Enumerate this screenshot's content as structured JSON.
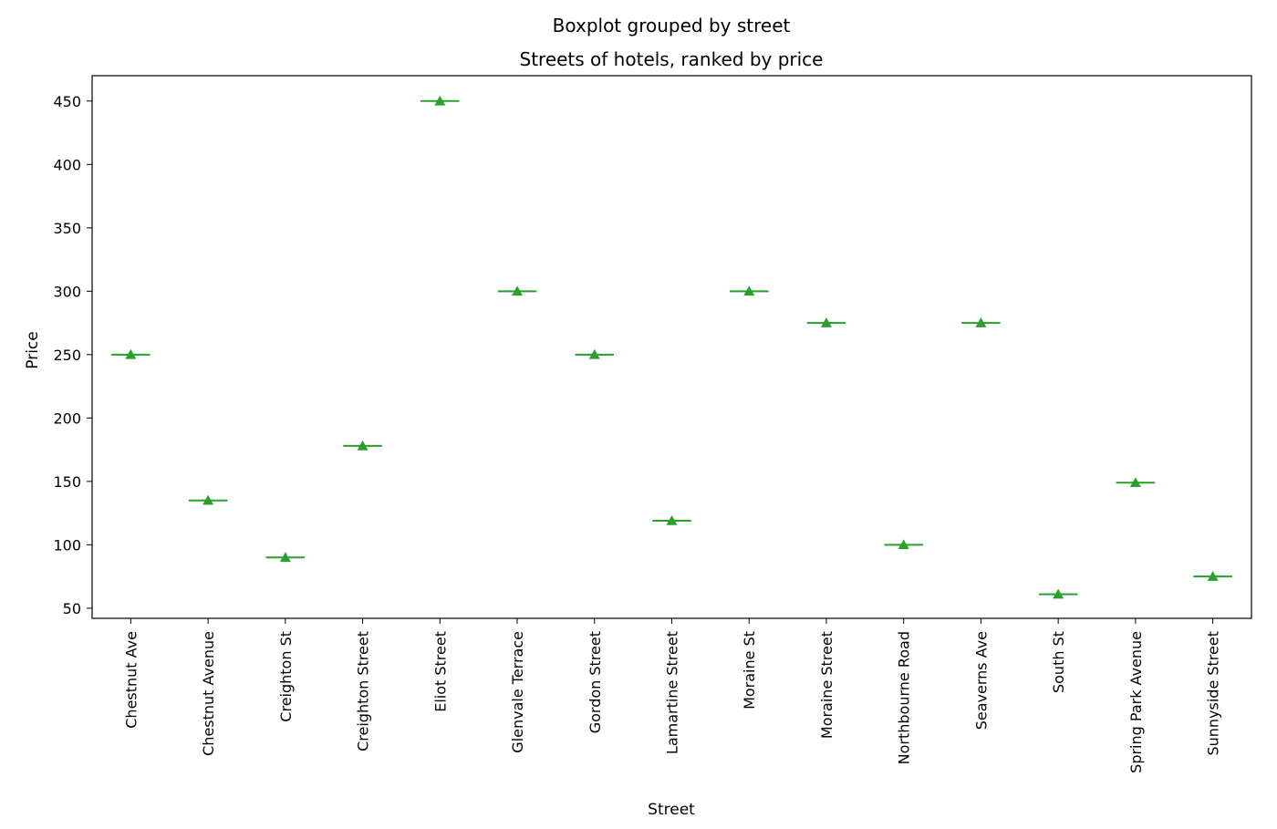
{
  "chart_data": {
    "type": "box",
    "suptitle": "Boxplot grouped by street",
    "title": "Streets of hotels, ranked by price",
    "xlabel": "Street",
    "ylabel": "Price",
    "ylim": [
      42,
      470
    ],
    "yticks": [
      50,
      100,
      150,
      200,
      250,
      300,
      350,
      400,
      450
    ],
    "grid": false,
    "show_means": true,
    "categories": [
      "Chestnut Ave",
      "Chestnut Avenue",
      "Creighton St",
      "Creighton Street",
      "Eliot Street",
      "Glenvale Terrace",
      "Gordon Street",
      "Lamartine Street",
      "Moraine St",
      "Moraine Street",
      "Northbourne Road",
      "Seaverns Ave",
      "South St",
      "Spring Park Avenue",
      "Sunnyside Street"
    ],
    "values": [
      250,
      135,
      90,
      178,
      450,
      300,
      250,
      119,
      300,
      275,
      100,
      275,
      61,
      149,
      75
    ]
  },
  "colors": {
    "box": "#1f77b4",
    "median": "#2ca02c",
    "mean_marker": "#2ca02c",
    "axes": "#000000"
  }
}
